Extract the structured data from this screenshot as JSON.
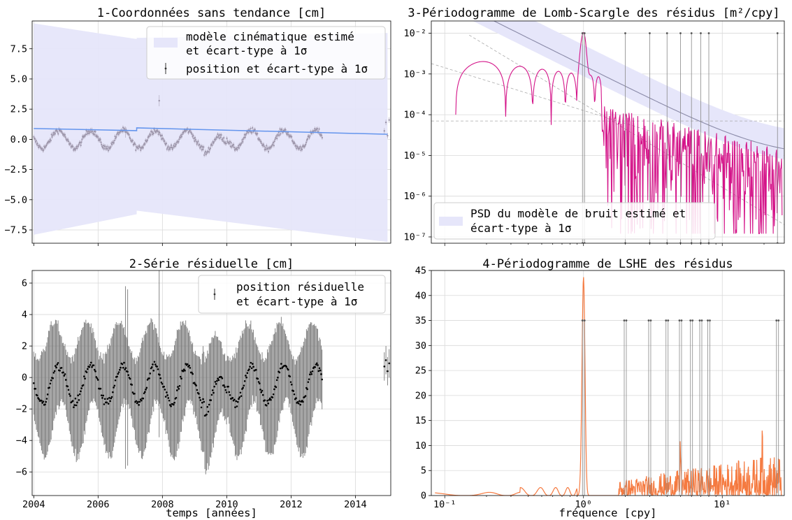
{
  "chart_data": [
    {
      "type": "scatter",
      "title": "1-Coordonnées sans tendance [cm]",
      "xlabel": "",
      "ylabel": "",
      "xlim": [
        2003.95,
        2015.1
      ],
      "ylim": [
        -8.6,
        9.8
      ],
      "yticks": [
        -7.5,
        -5.0,
        -2.5,
        0.0,
        2.5,
        5.0,
        7.5
      ],
      "ytick_labels": [
        "−7.5",
        "−5.0",
        "−2.5",
        "0.0",
        "2.5",
        "5.0",
        "7.5"
      ],
      "xticks": [
        2004,
        2006,
        2008,
        2010,
        2012,
        2014
      ],
      "xtick_labels": [],
      "grid": true,
      "legend_position": "upper right",
      "legend": [
        "modèle cinématique estimé\n et écart-type à 1σ",
        "position et écart-type à 1σ"
      ],
      "model_line": {
        "x": [
          2004,
          2007.2,
          2007.2,
          2015
        ],
        "y": [
          0.9,
          0.72,
          0.95,
          0.42
        ]
      },
      "model_band": {
        "x": [
          2004,
          2007.2,
          2007.2,
          2015
        ],
        "upper": [
          9.6,
          8.3,
          8.4,
          8.8
        ],
        "lower": [
          -7.9,
          -6.2,
          -5.9,
          -8.5
        ]
      },
      "series": [
        {
          "type": "scatter",
          "x_start": 2004.0,
          "x_end": 2012.98,
          "step": 0.019,
          "amplitude": 0.75,
          "offset": 0.0,
          "period_years": 1.0,
          "phase": 0.52
        },
        {
          "type": "scatter",
          "x": [
            2014.9,
            2014.95,
            2015.0,
            2015.05
          ],
          "y": [
            0.7,
            1.4,
            0.3,
            1.6
          ]
        }
      ],
      "outliers": [
        {
          "x": 2006.85,
          "y": 0.6
        },
        {
          "x": 2007.9,
          "y": 3.2
        }
      ]
    },
    {
      "type": "line",
      "title": "3-Périodogramme de Lomb-Scargle des résidus [m²/cpy]",
      "xscale": "log",
      "yscale": "log",
      "xlim": [
        0.08,
        28
      ],
      "ylim": [
        7e-08,
        0.02
      ],
      "yticks": [
        1e-07,
        1e-06,
        1e-05,
        0.0001,
        0.001,
        0.01
      ],
      "ytick_labels": [
        "10⁻⁷",
        "10⁻⁶",
        "10⁻⁵",
        "10⁻⁴",
        "10⁻³",
        "10⁻²"
      ],
      "grid": true,
      "legend_position": "lower left",
      "legend": [
        "PSD du modèle de bruit estimé et\n écart-type à 1σ"
      ],
      "colors": {
        "periodogram": "#d41489",
        "model": "#8a8aa8",
        "band": "#e6e6fa",
        "marker": "#888888"
      },
      "reference_lines": {
        "horizontal": 7e-05
      },
      "marker_frequencies": [
        1.0,
        2.0,
        3.0,
        4.0,
        5.0,
        6.0,
        7.0,
        8.0,
        25.0
      ]
    },
    {
      "type": "scatter",
      "title": "2-Série résiduelle [cm]",
      "xlabel": "temps [années]",
      "xlim": [
        2003.95,
        2015.1
      ],
      "ylim": [
        -7.5,
        6.8
      ],
      "yticks": [
        -6,
        -4,
        -2,
        0,
        2,
        4,
        6
      ],
      "ytick_labels": [
        "−6",
        "−4",
        "−2",
        "0",
        "2",
        "4",
        "6"
      ],
      "xticks": [
        2004,
        2006,
        2008,
        2010,
        2012,
        2014
      ],
      "xtick_labels": [
        "2004",
        "2006",
        "2008",
        "2010",
        "2012",
        "2014"
      ],
      "grid": true,
      "legend_position": "upper right",
      "legend": [
        "position résiduelle\n et écart-type à 1σ"
      ],
      "series": [
        {
          "type": "errorbar",
          "x_start": 2004.0,
          "x_end": 2012.98,
          "step": 0.027,
          "amplitude": 1.2,
          "offset": -0.45,
          "period_years": 1.0,
          "phase": 0.52,
          "error_base": 2.8,
          "error_amp": 0.9
        },
        {
          "type": "errorbar",
          "x": [
            2014.9,
            2014.95,
            2015.0,
            2015.05
          ],
          "y": [
            0.7,
            1.1,
            0.4,
            0.9
          ]
        }
      ]
    },
    {
      "type": "line",
      "title": "4-Périodogramme de LSHE des résidus",
      "xlabel": "fréquence [cpy]",
      "xscale": "log",
      "xlim": [
        0.08,
        28
      ],
      "ylim": [
        0,
        45
      ],
      "yticks": [
        0,
        5,
        10,
        15,
        20,
        25,
        30,
        35,
        40,
        45
      ],
      "ytick_labels": [
        "0",
        "5",
        "10",
        "15",
        "20",
        "25",
        "30",
        "35",
        "40",
        "45"
      ],
      "xticks": [
        0.1,
        1,
        10
      ],
      "xtick_labels": [
        "10⁻¹",
        "10⁰",
        "10¹"
      ],
      "grid": true,
      "colors": {
        "line": "#f57a40",
        "marker": "#888888"
      },
      "peak": {
        "x": 1.0,
        "y": 43.7
      },
      "marker_level": 35,
      "marker_frequencies": [
        1.0,
        2.0,
        3.0,
        4.0,
        5.0,
        6.0,
        7.0,
        8.0,
        25.0
      ]
    }
  ]
}
